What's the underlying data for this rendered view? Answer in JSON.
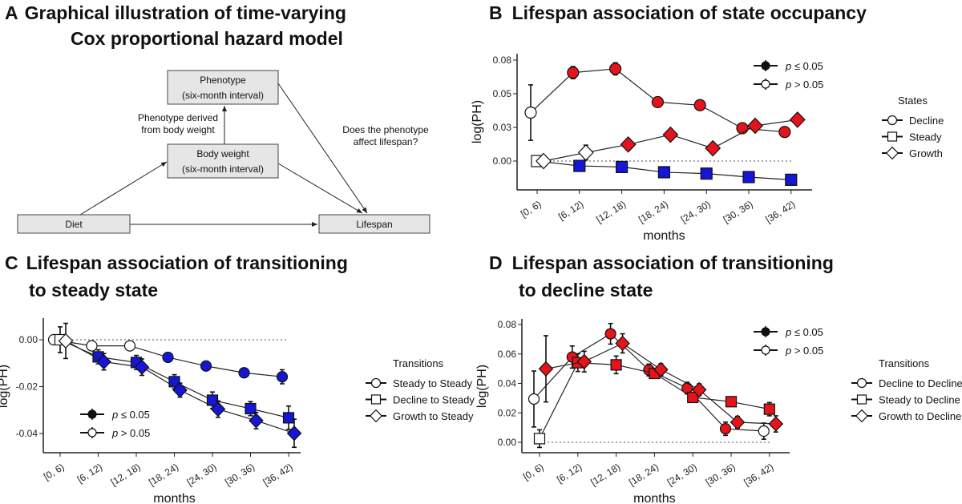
{
  "panels": {
    "a": {
      "letter": "A",
      "title_line1": "Graphical illustration of time-varying",
      "title_line2": "Cox proportional hazard model"
    },
    "b": {
      "letter": "B",
      "title_line1": "Lifespan association of state occupancy"
    },
    "c": {
      "letter": "C",
      "title_line1": "Lifespan association of transitioning",
      "title_line2": "to steady state"
    },
    "d": {
      "letter": "D",
      "title_line1": "Lifespan association of transitioning",
      "title_line2": "to decline state"
    }
  },
  "diagram": {
    "phenotype": {
      "line1": "Phenotype",
      "line2": "(six-month interval)"
    },
    "body_weight": {
      "line1": "Body weight",
      "line2": "(six-month interval)"
    },
    "diet": "Diet",
    "lifespan": "Lifespan",
    "note_left": {
      "line1": "Phenotype derived",
      "line2": "from body weight"
    },
    "note_right": {
      "line1": "Does the phenotype",
      "line2": "affect lifespan?"
    }
  },
  "colors": {
    "red": "#e3141c",
    "blue": "#1616d6"
  },
  "significance_legend": {
    "sig": "p ≤ 0.05",
    "nonsig": "p > 0.05"
  },
  "chart_data": [
    {
      "type": "line",
      "panel": "B",
      "xlabel": "months",
      "ylabel": "log(PH)",
      "categories": [
        "[0, 6)",
        "[6, 12)",
        "[12, 18)",
        "[18, 24)",
        "[24, 30)",
        "[30, 36)",
        "[36, 42)"
      ],
      "y_ticks": [
        0,
        0.025,
        0.05,
        0.075
      ],
      "y_tick_labels": [
        "0.00",
        "0.03",
        "0.05",
        "0.08"
      ],
      "legend_title": "States",
      "color": "red_blue_by_series",
      "series": [
        {
          "name": "Decline",
          "marker": "circle",
          "color": "#e3141c",
          "values": [
            0.036,
            0.0657,
            0.0685,
            0.0438,
            0.0415,
            0.0244,
            0.0216
          ],
          "errors": [
            0.0206,
            0.0045,
            0.0045,
            0.002,
            0.002,
            0.002,
            0.0035
          ],
          "significant": [
            false,
            true,
            true,
            true,
            true,
            true,
            true
          ]
        },
        {
          "name": "Steady",
          "marker": "square",
          "color": "#1616d6",
          "values": [
            0,
            -0.0036,
            -0.0044,
            -0.0083,
            -0.0093,
            -0.0119,
            -0.0139
          ],
          "errors": [
            0.001,
            0.001,
            0.001,
            0.001,
            0.001,
            0.001,
            0.001
          ],
          "significant": [
            false,
            true,
            true,
            true,
            true,
            true,
            true
          ]
        },
        {
          "name": "Growth",
          "marker": "diamond",
          "color": "#e3141c",
          "values": [
            0,
            0.0063,
            0.0123,
            0.0196,
            0.0095,
            0.0262,
            0.0307
          ],
          "errors": [
            0.001,
            0.0055,
            0.004,
            0.004,
            0.003,
            0.003,
            0.0035
          ],
          "significant": [
            false,
            false,
            true,
            true,
            true,
            true,
            true
          ]
        }
      ]
    },
    {
      "type": "line",
      "panel": "C",
      "xlabel": "months",
      "ylabel": "log(PH)",
      "categories": [
        "[0, 6)",
        "[6, 12)",
        "[12, 18)",
        "[18, 24)",
        "[24, 30)",
        "[30, 36)",
        "[36, 42)"
      ],
      "y_ticks": [
        0,
        -0.02,
        -0.04
      ],
      "y_tick_labels": [
        "0.00",
        "-0.02",
        "-0.04"
      ],
      "legend_title": "Transitions",
      "series": [
        {
          "name": "Steady to Steady",
          "marker": "circle",
          "color": "#1616d6",
          "values": [
            0,
            -0.0026,
            -0.0026,
            -0.0075,
            -0.0112,
            -0.0141,
            -0.0158
          ],
          "errors": [
            0.001,
            0.001,
            0.001,
            0.0012,
            0.0012,
            0.0015,
            0.003
          ],
          "significant": [
            false,
            false,
            false,
            true,
            true,
            true,
            true
          ]
        },
        {
          "name": "Decline to Steady",
          "marker": "square",
          "color": "#1616d6",
          "values": [
            0,
            -0.0073,
            -0.0097,
            -0.0179,
            -0.0258,
            -0.0294,
            -0.0333
          ],
          "errors": [
            0.0055,
            0.003,
            0.003,
            0.003,
            0.0035,
            0.003,
            0.005
          ],
          "significant": [
            false,
            true,
            true,
            true,
            true,
            true,
            true
          ]
        },
        {
          "name": "Growth to Steady",
          "marker": "diamond",
          "color": "#1616d6",
          "values": [
            -0.0005,
            -0.0094,
            -0.0117,
            -0.0215,
            -0.0296,
            -0.0345,
            -0.0399
          ],
          "errors": [
            0.0075,
            0.0035,
            0.0035,
            0.003,
            0.0035,
            0.0035,
            0.006
          ],
          "significant": [
            false,
            true,
            true,
            true,
            true,
            true,
            true
          ]
        }
      ]
    },
    {
      "type": "line",
      "panel": "D",
      "xlabel": "months",
      "ylabel": "log(PH)",
      "categories": [
        "[0, 6)",
        "[6, 12)",
        "[12, 18)",
        "[18, 24)",
        "[24, 30)",
        "[30, 36)",
        "[36, 42)"
      ],
      "y_ticks": [
        0,
        0.02,
        0.04,
        0.06,
        0.08
      ],
      "y_tick_labels": [
        "0.00",
        "0.02",
        "0.04",
        "0.06",
        "0.08"
      ],
      "legend_title": "Transitions",
      "series": [
        {
          "name": "Decline to Decline",
          "marker": "circle",
          "color": "#e3141c",
          "values": [
            0.0294,
            0.0579,
            0.0737,
            0.0491,
            0.0368,
            0.0092,
            0.0076
          ],
          "errors": [
            0.019,
            0.0075,
            0.007,
            0.004,
            0.004,
            0.0045,
            0.0055
          ],
          "significant": [
            false,
            true,
            true,
            true,
            true,
            true,
            false
          ]
        },
        {
          "name": "Steady to Decline",
          "marker": "square",
          "color": "#e3141c",
          "values": [
            0.0025,
            0.0541,
            0.0526,
            0.0468,
            0.0305,
            0.0276,
            0.0225
          ],
          "errors": [
            0.006,
            0.006,
            0.006,
            0.003,
            0.003,
            0.003,
            0.0045
          ],
          "significant": [
            false,
            true,
            true,
            true,
            true,
            true,
            true
          ]
        },
        {
          "name": "Growth to Decline",
          "marker": "diamond",
          "color": "#e3141c",
          "values": [
            0.0499,
            0.0548,
            0.0672,
            0.0494,
            0.0357,
            0.0136,
            0.0125
          ],
          "errors": [
            0.0225,
            0.007,
            0.0065,
            0.004,
            0.004,
            0.004,
            0.0055
          ],
          "significant": [
            true,
            true,
            true,
            true,
            true,
            true,
            true
          ]
        }
      ]
    }
  ]
}
